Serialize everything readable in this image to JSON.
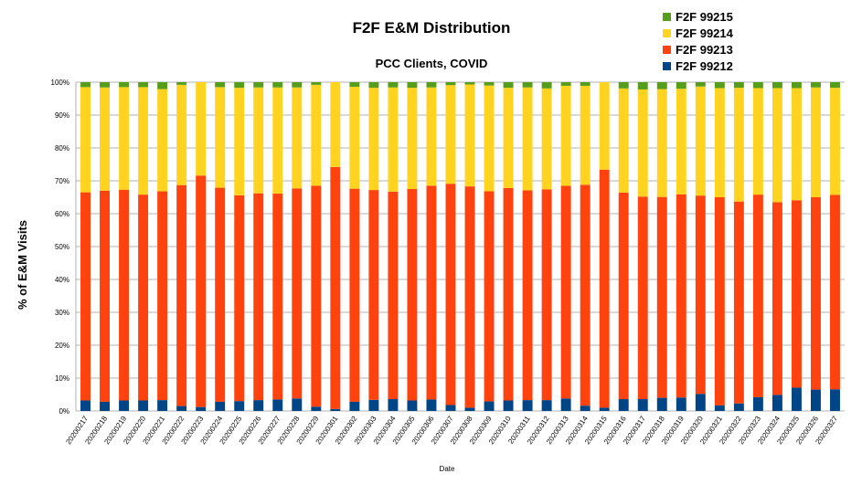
{
  "chart_data": {
    "type": "bar",
    "stacked": true,
    "percent_stacked": true,
    "title": "F2F E&M Distribution",
    "subtitle": "PCC Clients, COVID",
    "xlabel": "Date",
    "ylabel": "% of E&M Visits",
    "ylim": [
      0,
      100
    ],
    "yticks": [
      "0%",
      "10%",
      "20%",
      "30%",
      "40%",
      "50%",
      "60%",
      "70%",
      "80%",
      "90%",
      "100%"
    ],
    "grid": true,
    "legend_position": "top-right",
    "categories": [
      "20200217",
      "20200218",
      "20200219",
      "20200220",
      "20200221",
      "20200222",
      "20200223",
      "20200224",
      "20200225",
      "20200226",
      "20200227",
      "20200228",
      "20200229",
      "20200301",
      "20200302",
      "20200303",
      "20200304",
      "20200305",
      "20200306",
      "20200307",
      "20200308",
      "20200309",
      "20200310",
      "20200311",
      "20200312",
      "20200313",
      "20200314",
      "20200315",
      "20200316",
      "20200317",
      "20200318",
      "20200319",
      "20200320",
      "20200321",
      "20200322",
      "20200323",
      "20200324",
      "20200325",
      "20200326",
      "20200327"
    ],
    "series": [
      {
        "name": "F2F 99212",
        "color": "#004586",
        "values": [
          3.2,
          2.8,
          3.2,
          3.2,
          3.3,
          1.5,
          1.2,
          2.8,
          3.0,
          3.3,
          3.5,
          3.8,
          1.3,
          0.6,
          2.8,
          3.4,
          3.6,
          3.2,
          3.5,
          1.8,
          1.0,
          2.9,
          3.2,
          3.3,
          3.3,
          3.8,
          1.6,
          1.0,
          3.6,
          3.6,
          4.0,
          4.1,
          5.2,
          1.7,
          2.3,
          4.2,
          4.9,
          7.1,
          6.5,
          6.6
        ]
      },
      {
        "name": "F2F 99213",
        "color": "#ff420e",
        "values": [
          63.3,
          64.2,
          64.1,
          62.6,
          63.5,
          67.2,
          70.4,
          65.1,
          62.6,
          62.9,
          62.6,
          63.9,
          67.2,
          73.6,
          64.8,
          63.8,
          63.1,
          64.3,
          65.0,
          67.3,
          67.3,
          63.9,
          64.6,
          63.8,
          64.1,
          64.7,
          67.2,
          72.4,
          62.8,
          61.6,
          61.1,
          61.8,
          60.3,
          63.3,
          61.4,
          61.6,
          58.6,
          57.0,
          58.5,
          59.1
        ]
      },
      {
        "name": "F2F 99214",
        "color": "#ffd320",
        "values": [
          32.0,
          31.4,
          31.2,
          32.7,
          31.1,
          30.5,
          28.4,
          30.6,
          32.7,
          32.2,
          32.3,
          30.7,
          30.7,
          25.8,
          31.0,
          31.1,
          31.7,
          30.8,
          29.9,
          30.0,
          31.0,
          32.2,
          30.5,
          31.3,
          30.7,
          30.4,
          30.1,
          26.6,
          31.7,
          32.6,
          32.8,
          32.1,
          33.2,
          33.2,
          34.6,
          32.4,
          34.7,
          34.1,
          33.4,
          32.6
        ]
      },
      {
        "name": "F2F 99215",
        "color": "#579d1c",
        "values": [
          1.5,
          1.6,
          1.5,
          1.5,
          2.1,
          0.8,
          0.0,
          1.5,
          1.7,
          1.6,
          1.6,
          1.6,
          0.8,
          0.0,
          1.4,
          1.7,
          1.6,
          1.7,
          1.6,
          0.9,
          0.7,
          1.0,
          1.7,
          1.6,
          1.9,
          1.1,
          1.1,
          0.0,
          1.9,
          2.2,
          2.1,
          2.0,
          1.3,
          1.8,
          1.7,
          1.8,
          1.8,
          1.8,
          1.6,
          1.7
        ]
      }
    ]
  }
}
